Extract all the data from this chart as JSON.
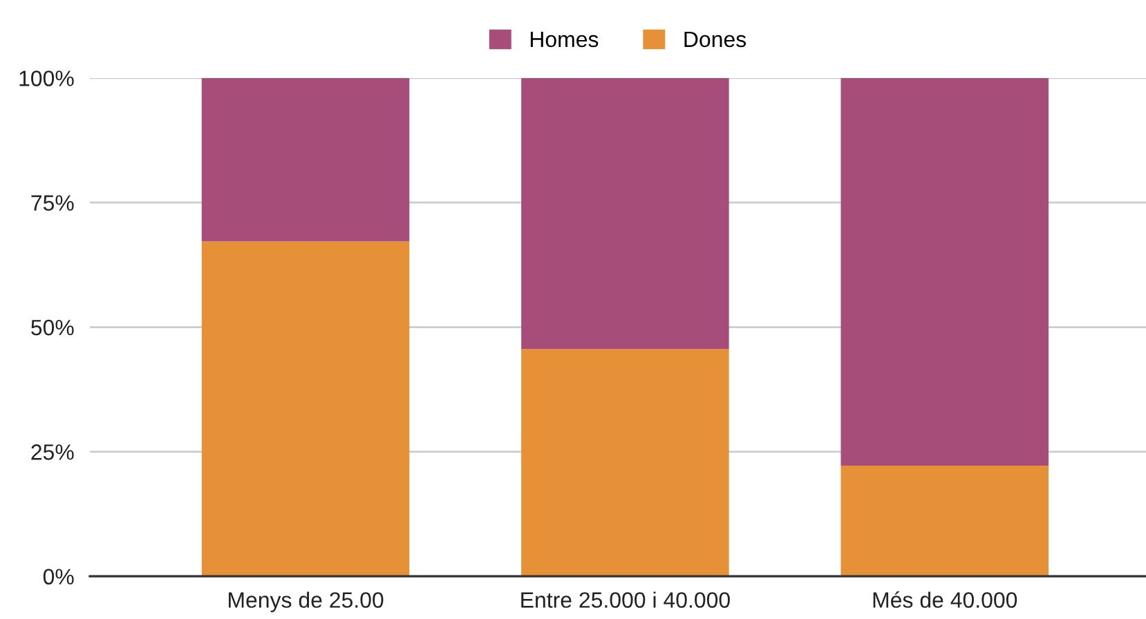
{
  "chart_data": {
    "type": "bar",
    "stacked": true,
    "categories": [
      "Menys de 25.00",
      "Entre 25.000 i 40.000",
      "Més de 40.000"
    ],
    "series": [
      {
        "name": "Dones",
        "color": "#e69138",
        "values": [
          67.2,
          45.6,
          22.2
        ]
      },
      {
        "name": "Homes",
        "color": "#a64d79",
        "values": [
          32.8,
          54.4,
          77.8
        ]
      }
    ],
    "ylim": [
      0,
      100
    ],
    "yticks": [
      {
        "value": 0,
        "label": "0%"
      },
      {
        "value": 25,
        "label": "25%"
      },
      {
        "value": 50,
        "label": "50%"
      },
      {
        "value": 75,
        "label": "75%"
      },
      {
        "value": 100,
        "label": "100%"
      }
    ],
    "grid": "y",
    "legend": "top"
  }
}
